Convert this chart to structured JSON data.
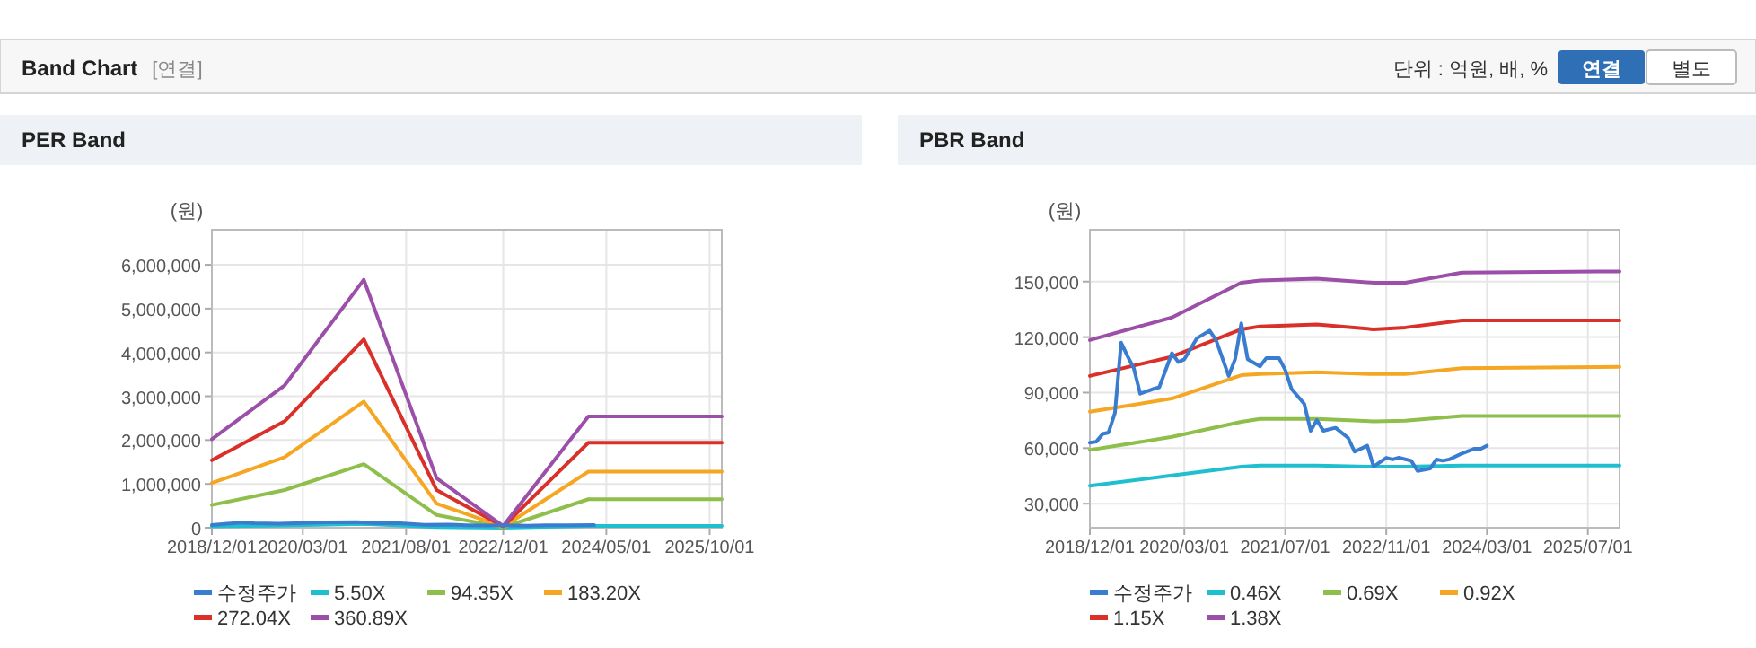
{
  "chart_data": [
    {
      "type": "other",
      "title": "Band Chart",
      "annotations": [
        "[연결]",
        "단위 : 억원, 배, %",
        "연결",
        "별도"
      ]
    },
    {
      "type": "line",
      "title": "PER Band",
      "ylabel": "(원)",
      "grid": true,
      "legend": "bottom",
      "marker": "none",
      "line_style": "solid",
      "xlim": [
        "2018-12-01",
        "2025-12-01"
      ],
      "xticks": [
        {
          "value": "2018-12-01",
          "label": "2018/12/01"
        },
        {
          "value": "2020-03-01",
          "label": "2020/03/01"
        },
        {
          "value": "2021-08-01",
          "label": "2021/08/01"
        },
        {
          "value": "2022-12-01",
          "label": "2022/12/01"
        },
        {
          "value": "2024-05-01",
          "label": "2024/05/01"
        },
        {
          "value": "2025-10-01",
          "label": "2025/10/01"
        }
      ],
      "ylim": [
        0,
        6800000
      ],
      "yticks": [
        0,
        {
          "value": 1000000,
          "label": "1,000,000"
        },
        {
          "value": 2000000,
          "label": "2,000,000"
        },
        {
          "value": 3000000,
          "label": "3,000,000"
        },
        {
          "value": 4000000,
          "label": "4,000,000"
        },
        {
          "value": 5000000,
          "label": "5,000,000"
        },
        {
          "value": 6000000,
          "label": "6,000,000"
        }
      ],
      "x": [
        "2018-12",
        "2019-12",
        "2021-01",
        "2022-01",
        "2022-12",
        "2024-02",
        "2025-12"
      ],
      "series": [
        {
          "name": "수정주가",
          "color": "#3a7dd0",
          "x": [
            "2018-12",
            "2019-05",
            "2019-07",
            "2019-11",
            "2020-03",
            "2020-07",
            "2020-12",
            "2021-03",
            "2021-07",
            "2021-11",
            "2022-03",
            "2022-06",
            "2022-09",
            "2022-12",
            "2023-04",
            "2023-07",
            "2023-11",
            "2024-03"
          ],
          "values": [
            63000,
            117000,
            103000,
            93000,
            108000,
            123500,
            127000,
            104000,
            102000,
            69000,
            71000,
            58000,
            50000,
            54000,
            48000,
            54000,
            57000,
            61000
          ]
        },
        {
          "name": "5.50X",
          "color": "#1fbfd0",
          "values": [
            31000,
            50000,
            86000,
            17000,
            0,
            39000,
            39000
          ]
        },
        {
          "name": "94.35X",
          "color": "#8dbf4a",
          "values": [
            520000,
            860000,
            1450000,
            290000,
            10000,
            650000,
            650000
          ]
        },
        {
          "name": "183.20X",
          "color": "#f5a623",
          "values": [
            1020000,
            1610000,
            2880000,
            550000,
            20000,
            1280000,
            1280000
          ]
        },
        {
          "name": "272.04X",
          "color": "#d9312a",
          "values": [
            1540000,
            2430000,
            4300000,
            860000,
            30000,
            1940000,
            1940000
          ]
        },
        {
          "name": "360.89X",
          "color": "#9b4fa8",
          "values": [
            2020000,
            3250000,
            5660000,
            1130000,
            40000,
            2540000,
            2540000
          ]
        }
      ]
    },
    {
      "type": "line",
      "title": "PBR Band",
      "ylabel": "(원)",
      "grid": true,
      "legend": "bottom",
      "marker": "none",
      "line_style": "solid",
      "xlim": [
        "2018-12-01",
        "2025-12-01"
      ],
      "xticks": [
        {
          "value": "2018-12-01",
          "label": "2018/12/01"
        },
        {
          "value": "2020-03-01",
          "label": "2020/03/01"
        },
        {
          "value": "2021-07-01",
          "label": "2021/07/01"
        },
        {
          "value": "2022-11-01",
          "label": "2022/11/01"
        },
        {
          "value": "2024-03-01",
          "label": "2024/03/01"
        },
        {
          "value": "2025-07-01",
          "label": "2025/07/01"
        }
      ],
      "ylim": [
        17000,
        178000
      ],
      "yticks": [
        {
          "value": 30000,
          "label": "30,000"
        },
        {
          "value": 60000,
          "label": "60,000"
        },
        {
          "value": 90000,
          "label": "90,000"
        },
        {
          "value": 120000,
          "label": "120,000"
        },
        {
          "value": 150000,
          "label": "150,000"
        }
      ],
      "x": [
        "2018-12",
        "2020-01",
        "2020-12",
        "2021-03",
        "2021-12",
        "2022-09",
        "2023-02",
        "2023-11",
        "2025-12"
      ],
      "series": [
        {
          "name": "수정주가",
          "color": "#3a7dd0",
          "x": [
            "2018-12",
            "2019-01",
            "2019-02",
            "2019-03",
            "2019-04",
            "2019-05",
            "2019-06",
            "2019-07",
            "2019-08",
            "2019-10",
            "2019-11",
            "2020-01",
            "2020-02",
            "2020-03",
            "2020-05",
            "2020-07",
            "2020-08",
            "2020-10",
            "2020-11",
            "2020-12",
            "2021-01",
            "2021-03",
            "2021-04",
            "2021-06",
            "2021-07",
            "2021-08",
            "2021-10",
            "2021-11",
            "2021-12",
            "2022-01",
            "2022-03",
            "2022-05",
            "2022-06",
            "2022-08",
            "2022-09",
            "2022-11",
            "2022-12",
            "2023-01",
            "2023-03",
            "2023-04",
            "2023-06",
            "2023-07",
            "2023-08",
            "2023-09",
            "2023-11",
            "2024-01",
            "2024-02",
            "2024-03"
          ],
          "values": [
            62900,
            63500,
            67700,
            68400,
            79000,
            117000,
            109700,
            103200,
            89400,
            91900,
            92900,
            111300,
            106500,
            108000,
            119400,
            123500,
            118400,
            99000,
            108000,
            127400,
            108000,
            104200,
            108700,
            108700,
            102300,
            91900,
            83900,
            69400,
            75200,
            69400,
            71000,
            65500,
            58100,
            61300,
            50000,
            54800,
            53900,
            54800,
            53200,
            47700,
            49000,
            53900,
            53200,
            53900,
            57100,
            59700,
            59700,
            61300
          ]
        },
        {
          "name": "0.46X",
          "color": "#1fbfd0",
          "values": [
            39700,
            45200,
            50000,
            50600,
            50600,
            50000,
            50000,
            50600,
            50600
          ]
        },
        {
          "name": "0.69X",
          "color": "#8dbf4a",
          "values": [
            59000,
            66100,
            74200,
            75800,
            75800,
            74500,
            74800,
            77400,
            77400
          ]
        },
        {
          "name": "0.92X",
          "color": "#f5a623",
          "values": [
            79700,
            86800,
            99400,
            100000,
            101000,
            100000,
            100000,
            103200,
            103900
          ]
        },
        {
          "name": "1.15X",
          "color": "#d9312a",
          "values": [
            99000,
            109400,
            124200,
            125800,
            126800,
            124200,
            125200,
            129000,
            129000
          ]
        },
        {
          "name": "1.38X",
          "color": "#9b4fa8",
          "values": [
            118400,
            130600,
            149400,
            150600,
            151600,
            149400,
            149400,
            154800,
            155500
          ]
        }
      ]
    }
  ]
}
